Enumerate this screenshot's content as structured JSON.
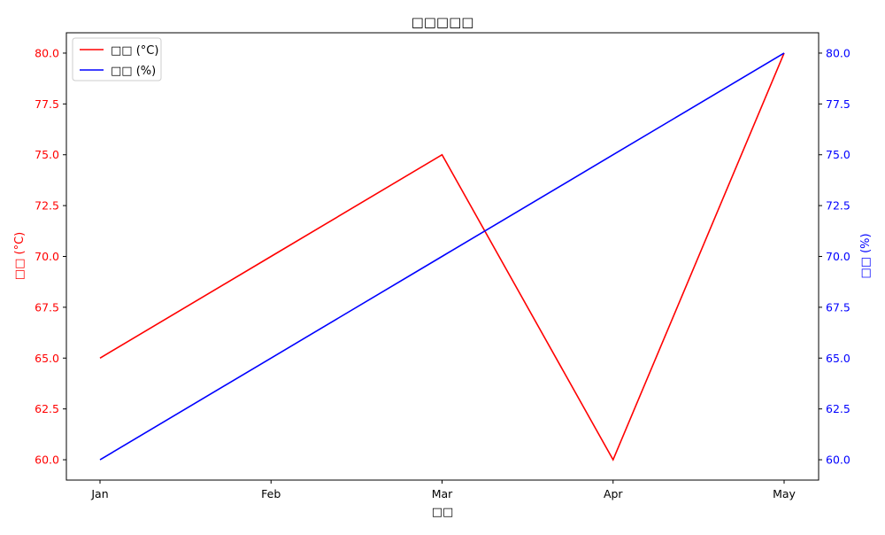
{
  "chart_data": {
    "type": "line",
    "title": "□□□□□",
    "xlabel": "□□",
    "ylabel_left": "□□ (°C)",
    "ylabel_right": "□□ (%)",
    "categories": [
      "Jan",
      "Feb",
      "Mar",
      "Apr",
      "May"
    ],
    "ylim_left": [
      59,
      81
    ],
    "ylim_right": [
      59,
      81
    ],
    "yticks_left": [
      "60.0",
      "62.5",
      "65.0",
      "67.5",
      "70.0",
      "72.5",
      "75.0",
      "77.5",
      "80.0"
    ],
    "yticks_right": [
      "60.0",
      "62.5",
      "65.0",
      "67.5",
      "70.0",
      "72.5",
      "75.0",
      "77.5",
      "80.0"
    ],
    "series": [
      {
        "name": "□□ (°C)",
        "axis": "left",
        "color": "#ff0000",
        "values": [
          65,
          70,
          75,
          60,
          80
        ]
      },
      {
        "name": "□□ (%)",
        "axis": "right",
        "color": "#0000ff",
        "values": [
          60,
          65,
          70,
          75,
          80
        ]
      }
    ],
    "legend_position": "top-left",
    "grid": false,
    "left_axis_color": "#ff0000",
    "right_axis_color": "#0000ff"
  }
}
